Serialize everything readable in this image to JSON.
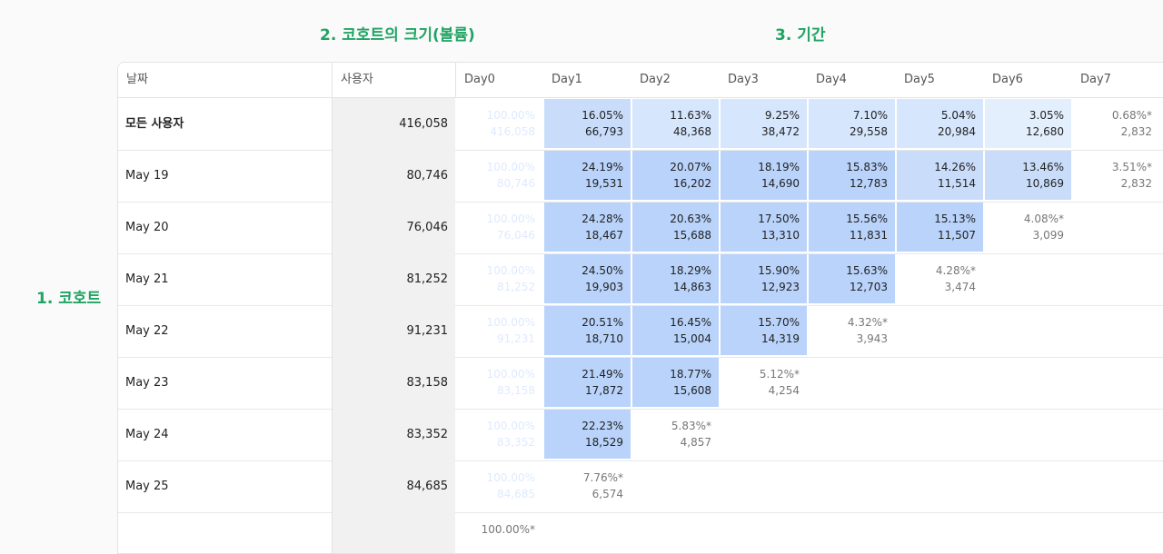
{
  "annotations": {
    "volume": "2. 코호트의 크기(볼륨)",
    "period": "3. 기간",
    "cohort": "1. 코호트"
  },
  "headers": {
    "date": "날짜",
    "users": "사용자",
    "days": [
      "Day0",
      "Day1",
      "Day2",
      "Day3",
      "Day4",
      "Day5",
      "Day6",
      "Day7"
    ]
  },
  "colors": {
    "day0": "#2266e6",
    "high": "#b9d3fb",
    "mid": "#c9ddfb",
    "low": "#d6e6fd",
    "lowest": "#e4effe"
  },
  "rows": [
    {
      "date": "모든 사용자",
      "users": "416,058",
      "bold": true,
      "cells": [
        {
          "pct": "100.00%",
          "cnt": "416,058",
          "kind": "d0"
        },
        {
          "pct": "16.05%",
          "cnt": "66,793",
          "kind": "mid"
        },
        {
          "pct": "11.63%",
          "cnt": "48,368",
          "kind": "low"
        },
        {
          "pct": "9.25%",
          "cnt": "38,472",
          "kind": "low"
        },
        {
          "pct": "7.10%",
          "cnt": "29,558",
          "kind": "low"
        },
        {
          "pct": "5.04%",
          "cnt": "20,984",
          "kind": "low"
        },
        {
          "pct": "3.05%",
          "cnt": "12,680",
          "kind": "lowest"
        },
        {
          "pct": "0.68%*",
          "cnt": "2,832",
          "kind": "tail"
        }
      ]
    },
    {
      "date": "May 19",
      "users": "80,746",
      "cells": [
        {
          "pct": "100.00%",
          "cnt": "80,746",
          "kind": "d0"
        },
        {
          "pct": "24.19%",
          "cnt": "19,531",
          "kind": "high"
        },
        {
          "pct": "20.07%",
          "cnt": "16,202",
          "kind": "high"
        },
        {
          "pct": "18.19%",
          "cnt": "14,690",
          "kind": "high"
        },
        {
          "pct": "15.83%",
          "cnt": "12,783",
          "kind": "high"
        },
        {
          "pct": "14.26%",
          "cnt": "11,514",
          "kind": "mid"
        },
        {
          "pct": "13.46%",
          "cnt": "10,869",
          "kind": "mid"
        },
        {
          "pct": "3.51%*",
          "cnt": "2,832",
          "kind": "tail"
        }
      ]
    },
    {
      "date": "May 20",
      "users": "76,046",
      "cells": [
        {
          "pct": "100.00%",
          "cnt": "76,046",
          "kind": "d0"
        },
        {
          "pct": "24.28%",
          "cnt": "18,467",
          "kind": "high"
        },
        {
          "pct": "20.63%",
          "cnt": "15,688",
          "kind": "high"
        },
        {
          "pct": "17.50%",
          "cnt": "13,310",
          "kind": "high"
        },
        {
          "pct": "15.56%",
          "cnt": "11,831",
          "kind": "high"
        },
        {
          "pct": "15.13%",
          "cnt": "11,507",
          "kind": "high"
        },
        {
          "pct": "4.08%*",
          "cnt": "3,099",
          "kind": "tail"
        }
      ]
    },
    {
      "date": "May 21",
      "users": "81,252",
      "cells": [
        {
          "pct": "100.00%",
          "cnt": "81,252",
          "kind": "d0"
        },
        {
          "pct": "24.50%",
          "cnt": "19,903",
          "kind": "high"
        },
        {
          "pct": "18.29%",
          "cnt": "14,863",
          "kind": "high"
        },
        {
          "pct": "15.90%",
          "cnt": "12,923",
          "kind": "high"
        },
        {
          "pct": "15.63%",
          "cnt": "12,703",
          "kind": "high"
        },
        {
          "pct": "4.28%*",
          "cnt": "3,474",
          "kind": "tail"
        }
      ]
    },
    {
      "date": "May 22",
      "users": "91,231",
      "cells": [
        {
          "pct": "100.00%",
          "cnt": "91,231",
          "kind": "d0"
        },
        {
          "pct": "20.51%",
          "cnt": "18,710",
          "kind": "high"
        },
        {
          "pct": "16.45%",
          "cnt": "15,004",
          "kind": "high"
        },
        {
          "pct": "15.70%",
          "cnt": "14,319",
          "kind": "high"
        },
        {
          "pct": "4.32%*",
          "cnt": "3,943",
          "kind": "tail"
        }
      ]
    },
    {
      "date": "May 23",
      "users": "83,158",
      "cells": [
        {
          "pct": "100.00%",
          "cnt": "83,158",
          "kind": "d0"
        },
        {
          "pct": "21.49%",
          "cnt": "17,872",
          "kind": "high"
        },
        {
          "pct": "18.77%",
          "cnt": "15,608",
          "kind": "high"
        },
        {
          "pct": "5.12%*",
          "cnt": "4,254",
          "kind": "tail"
        }
      ]
    },
    {
      "date": "May 24",
      "users": "83,352",
      "cells": [
        {
          "pct": "100.00%",
          "cnt": "83,352",
          "kind": "d0"
        },
        {
          "pct": "22.23%",
          "cnt": "18,529",
          "kind": "high"
        },
        {
          "pct": "5.83%*",
          "cnt": "4,857",
          "kind": "tail"
        }
      ]
    },
    {
      "date": "May 25",
      "users": "84,685",
      "cells": [
        {
          "pct": "100.00%",
          "cnt": "84,685",
          "kind": "d0"
        },
        {
          "pct": "7.76%*",
          "cnt": "6,574",
          "kind": "tail"
        }
      ]
    },
    {
      "date": "",
      "users": "",
      "cells": [
        {
          "pct": "100.00%*",
          "cnt": "",
          "kind": "tail"
        }
      ]
    }
  ]
}
